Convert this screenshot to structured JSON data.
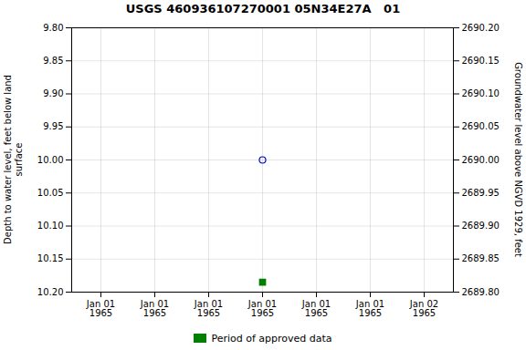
{
  "chart_data": {
    "type": "scatter",
    "title": "USGS 460936107270001 05N34E27A   01",
    "ylabel": "Depth to water level, feet below land\nsurface",
    "y2label": "Groundwater level above NGVD 1929, feet",
    "categories": [
      "Jan 01\n1965",
      "Jan 01\n1965",
      "Jan 01\n1965",
      "Jan 01\n1965",
      "Jan 01\n1965",
      "Jan 01\n1965",
      "Jan 02\n1965"
    ],
    "series": [
      {
        "color": "#0000cc",
        "marker": "circle",
        "values": [
          null,
          null,
          null,
          10.0,
          null,
          null,
          null
        ]
      },
      {
        "name": "Period of approved data",
        "color": "#008000",
        "marker": "square",
        "values": [
          null,
          null,
          null,
          10.185,
          null,
          null,
          null
        ]
      }
    ],
    "ylim": [
      10.2,
      9.8
    ],
    "yticks": [
      {
        "value": 9.8,
        "label": "9.80"
      },
      9.85,
      {
        "value": 9.9,
        "label": "9.90"
      },
      9.95,
      {
        "value": 10.0,
        "label": "10.00"
      },
      10.05,
      {
        "value": 10.1,
        "label": "10.10"
      },
      10.15,
      {
        "value": 10.2,
        "label": "10.20"
      }
    ],
    "y2lim": [
      2689.8,
      2690.2
    ],
    "y2ticks": [
      {
        "value": 2689.8,
        "label": "2689.80"
      },
      2689.85,
      {
        "value": 2689.9,
        "label": "2689.90"
      },
      2689.95,
      {
        "value": 2690.0,
        "label": "2690.00"
      },
      2690.05,
      {
        "value": 2690.1,
        "label": "2690.10"
      },
      2690.15,
      {
        "value": 2690.2,
        "label": "2690.20"
      }
    ],
    "grid": true,
    "legend": "bottom"
  }
}
